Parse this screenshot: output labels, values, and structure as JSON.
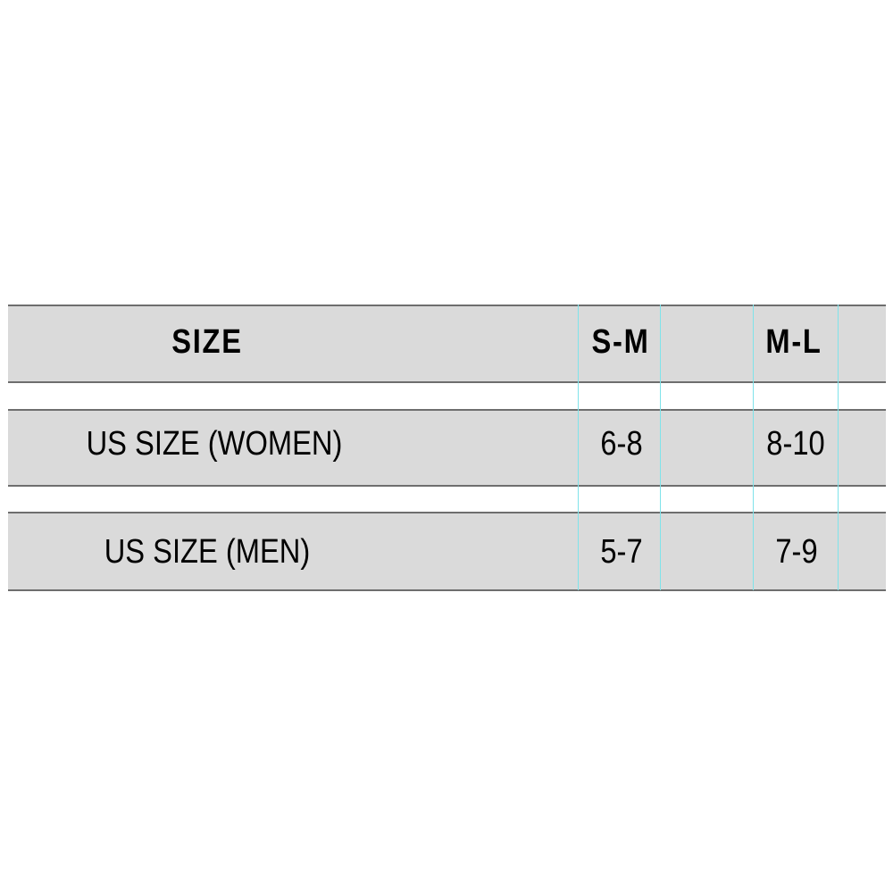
{
  "table": {
    "header": {
      "label": "SIZE",
      "columns": [
        "S-M",
        "M-L"
      ]
    },
    "rows": [
      {
        "label": "US SIZE (WOMEN)",
        "values": [
          "6-8",
          "8-10"
        ]
      },
      {
        "label": "US SIZE (MEN)",
        "values": [
          "5-7",
          "7-9"
        ]
      }
    ]
  },
  "colors": {
    "band": "#dadada",
    "border": "#6e6e6e",
    "guide_lines": "#7fe3ea"
  }
}
